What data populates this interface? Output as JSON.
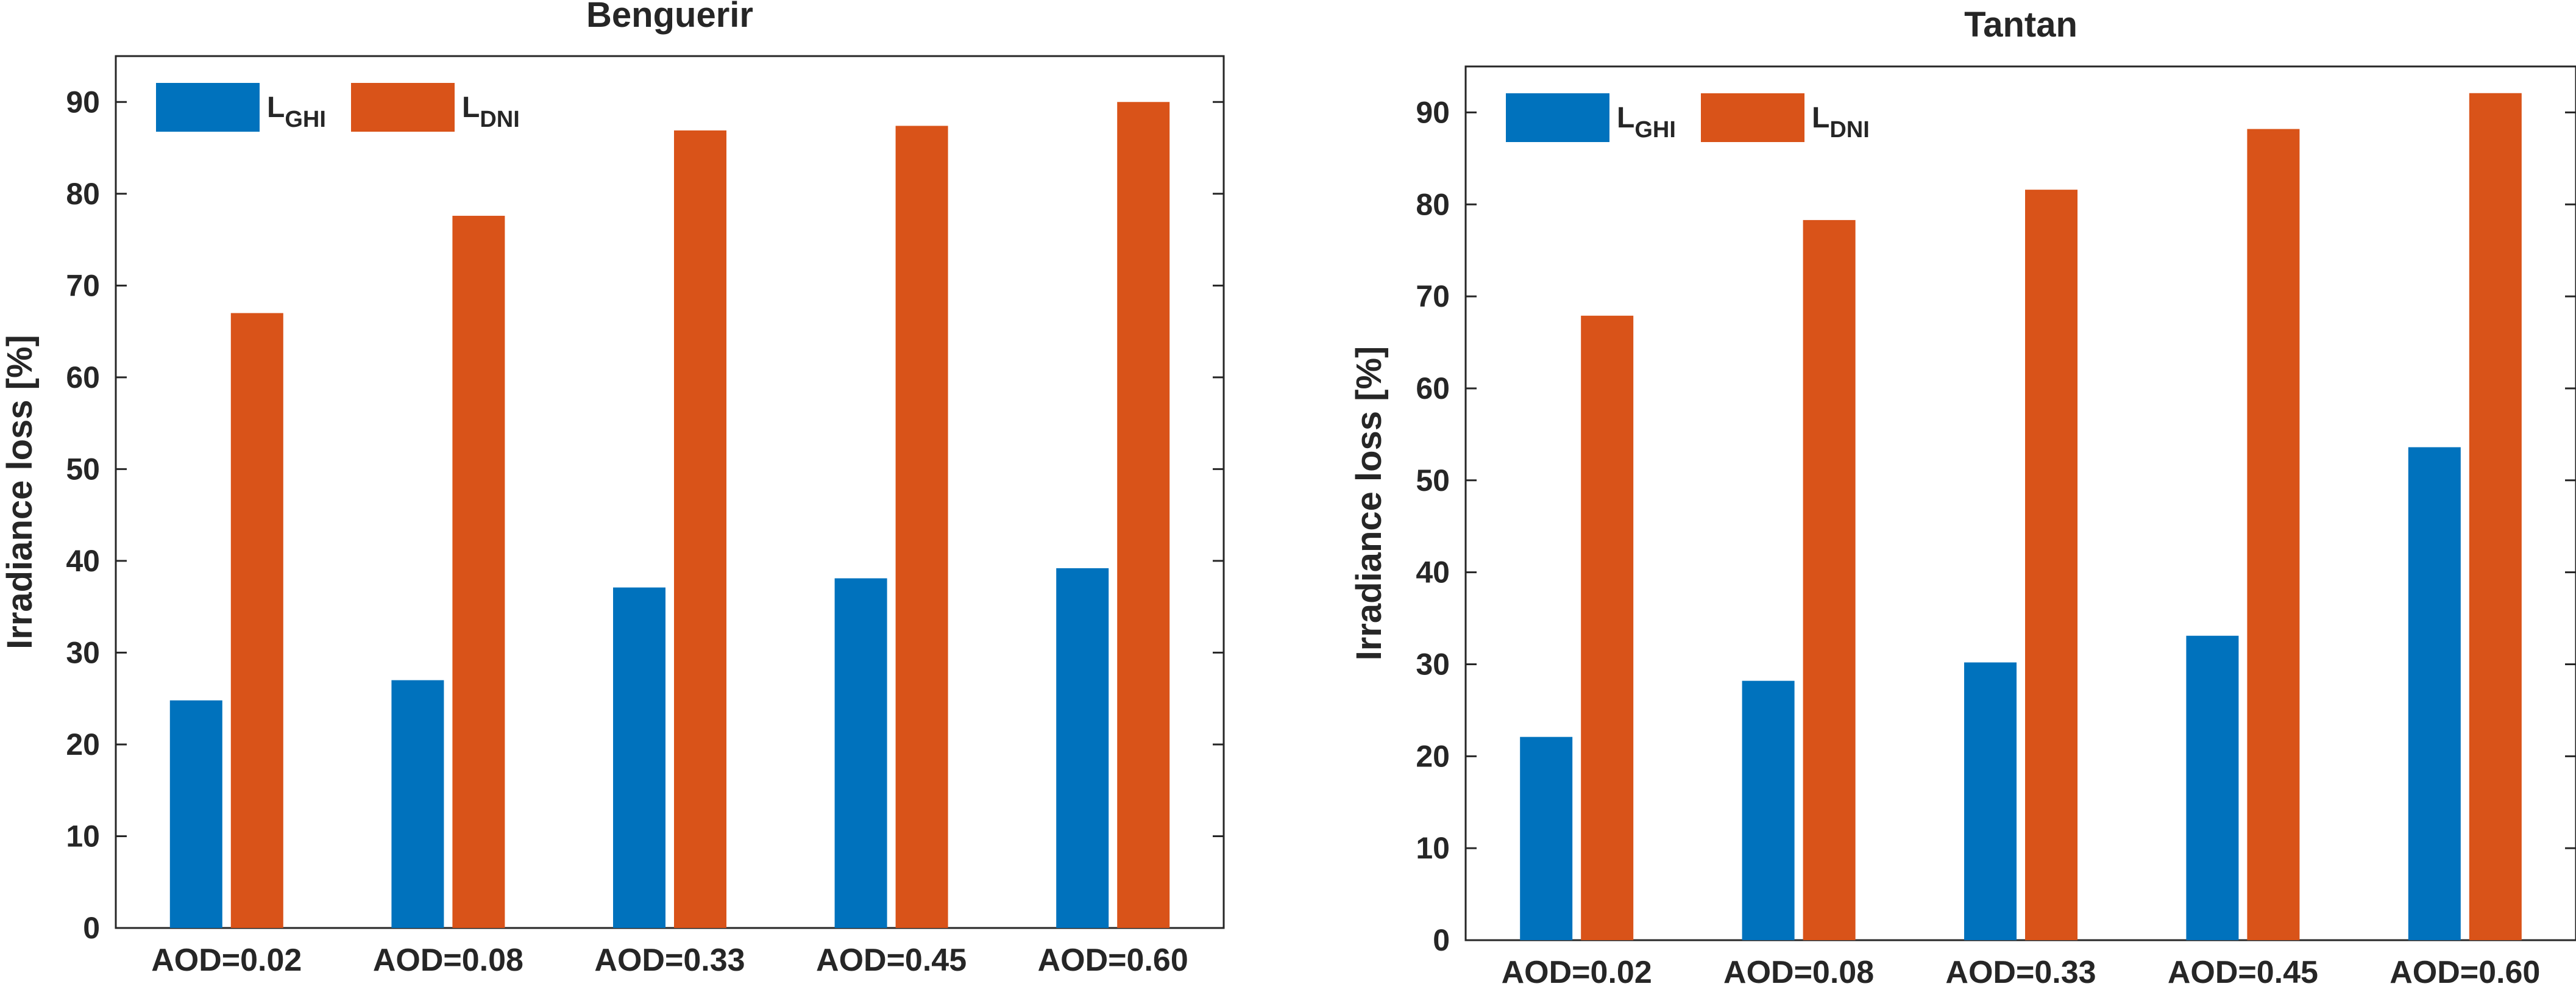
{
  "chart_data": [
    {
      "type": "bar",
      "title": "Benguerir",
      "ylabel": "Irradiance loss [%]",
      "xlabel": "",
      "categories": [
        "AOD=0.02",
        "AOD=0.08",
        "AOD=0.33",
        "AOD=0.45",
        "AOD=0.60"
      ],
      "ylim": [
        0,
        95
      ],
      "yticks": [
        "0",
        "10",
        "20",
        "30",
        "40",
        "50",
        "60",
        "70",
        "80",
        "90"
      ],
      "grid": false,
      "legend_position": "top-left",
      "series": [
        {
          "name_main": "L",
          "name_sub": "GHI",
          "color": "#0072BD",
          "values": [
            24.8,
            27.0,
            37.1,
            38.1,
            39.2
          ]
        },
        {
          "name_main": "L",
          "name_sub": "DNI",
          "color": "#D95319",
          "values": [
            67.0,
            77.6,
            86.9,
            87.4,
            90.0
          ]
        }
      ]
    },
    {
      "type": "bar",
      "title": "Tantan",
      "ylabel": "Irradiance loss [%]",
      "xlabel": "",
      "categories": [
        "AOD=0.02",
        "AOD=0.08",
        "AOD=0.33",
        "AOD=0.45",
        "AOD=0.60"
      ],
      "ylim": [
        0,
        95
      ],
      "yticks": [
        "0",
        "10",
        "20",
        "30",
        "40",
        "50",
        "60",
        "70",
        "80",
        "90"
      ],
      "grid": false,
      "legend_position": "top-left",
      "series": [
        {
          "name_main": "L",
          "name_sub": "GHI",
          "color": "#0072BD",
          "values": [
            22.1,
            28.2,
            30.2,
            33.1,
            53.6
          ]
        },
        {
          "name_main": "L",
          "name_sub": "DNI",
          "color": "#D95319",
          "values": [
            67.9,
            78.3,
            81.6,
            88.2,
            92.1
          ]
        }
      ]
    }
  ]
}
